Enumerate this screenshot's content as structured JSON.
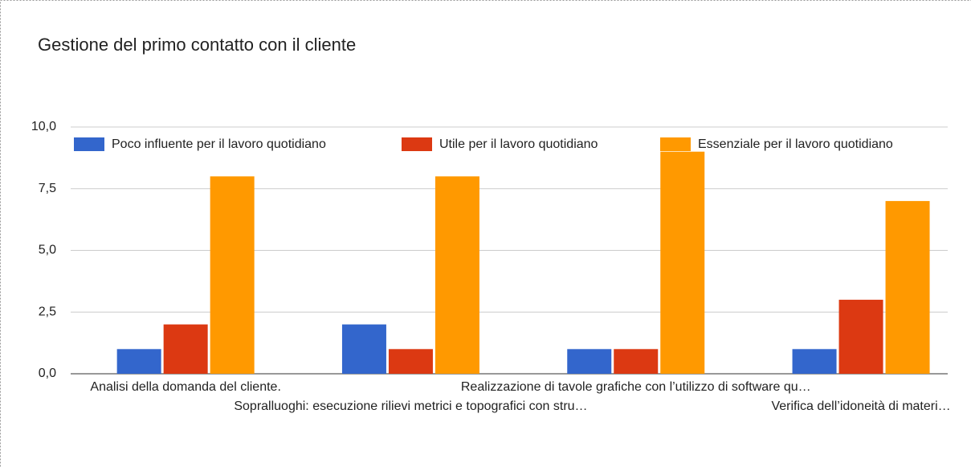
{
  "chart_data": {
    "type": "bar",
    "title": "Gestione del primo contatto con il cliente",
    "categories": [
      "Analisi della domanda del cliente.",
      "Sopralluoghi: esecuzione rilievi metrici e topografici con stru…",
      "Realizzazione di tavole grafiche con l’utilizzo di software qu…",
      "Verifica dell’idoneità di materi…"
    ],
    "series": [
      {
        "name": "Poco influente per il lavoro quotidiano",
        "color": "#3366cc",
        "values": [
          1,
          2,
          1,
          1
        ]
      },
      {
        "name": "Utile per il lavoro quotidiano",
        "color": "#dc3912",
        "values": [
          2,
          1,
          1,
          3
        ]
      },
      {
        "name": "Essenziale per il lavoro quotidiano",
        "color": "#ff9900",
        "values": [
          8,
          8,
          9,
          7
        ]
      }
    ],
    "ylim": [
      0,
      10
    ],
    "yticks": [
      {
        "value": 0,
        "label": "0,0"
      },
      {
        "value": 2.5,
        "label": "2,5"
      },
      {
        "value": 5,
        "label": "5,0"
      },
      {
        "value": 7.5,
        "label": "7,5"
      },
      {
        "value": 10,
        "label": "10,0"
      }
    ],
    "grid": true,
    "legend": "top"
  }
}
